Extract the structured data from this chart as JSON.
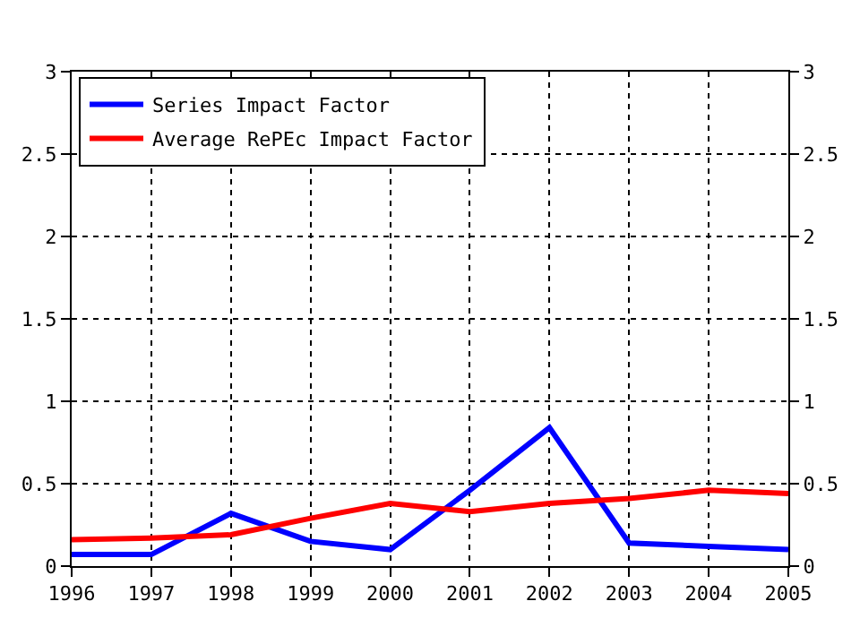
{
  "chart_data": {
    "type": "line",
    "x": [
      1996,
      1997,
      1998,
      1999,
      2000,
      2001,
      2002,
      2003,
      2004,
      2005
    ],
    "series": [
      {
        "name": "Series Impact Factor",
        "color": "#0000ff",
        "values": [
          0.07,
          0.07,
          0.32,
          0.15,
          0.1,
          0.46,
          0.84,
          0.14,
          0.12,
          0.1
        ]
      },
      {
        "name": "Average RePEc Impact Factor",
        "color": "#ff0000",
        "values": [
          0.16,
          0.17,
          0.19,
          0.29,
          0.38,
          0.33,
          0.38,
          0.41,
          0.46,
          0.44
        ]
      }
    ],
    "xlim": [
      1996,
      2005
    ],
    "xticks": [
      1996,
      1997,
      1998,
      1999,
      2000,
      2001,
      2002,
      2003,
      2004,
      2005
    ],
    "ylim": [
      0,
      3
    ],
    "yticks": [
      0,
      0.5,
      1,
      1.5,
      2,
      2.5,
      3
    ],
    "y2lim": [
      0,
      3
    ],
    "y2ticks": [
      0,
      0.5,
      1,
      1.5,
      2,
      2.5,
      3
    ],
    "grid": true,
    "legend": "top left",
    "line_style": "solid"
  }
}
